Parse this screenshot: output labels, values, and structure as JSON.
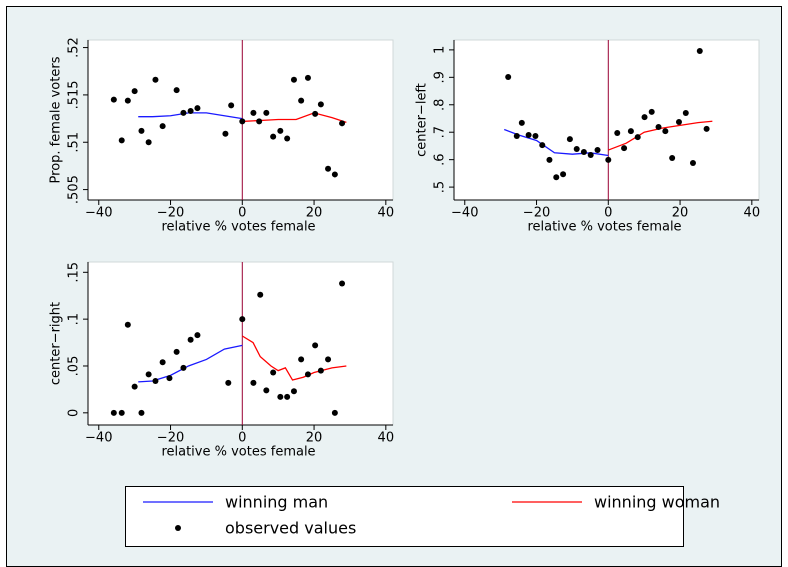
{
  "chart_data": [
    {
      "type": "line",
      "ylabel": "Prop. female voters",
      "xlabel": "relative % votes female",
      "xlim": [
        -43,
        42
      ],
      "ylim": [
        0.5039,
        0.5208
      ],
      "xticks": [
        {
          "value": -40,
          "label": "−40"
        },
        {
          "value": -20,
          "label": "−20"
        },
        0,
        20,
        40
      ],
      "yticks": [
        {
          "value": 0.505,
          "label": ".505"
        },
        {
          "value": 0.51,
          "label": ".51"
        },
        {
          "value": 0.515,
          "label": ".515"
        },
        {
          "value": 0.52,
          "label": ".52"
        }
      ],
      "xline": 0,
      "xline_color": "#990033",
      "series": [
        {
          "name": "winning man",
          "type": "line",
          "color": "#1a1aff",
          "x": [
            -29,
            -25,
            -20,
            -15,
            -10,
            -5,
            0
          ],
          "values": [
            0.5127,
            0.5127,
            0.5128,
            0.5131,
            0.5131,
            0.5128,
            0.5125
          ]
        },
        {
          "name": "winning woman",
          "type": "line",
          "color": "#ff0000",
          "x": [
            0,
            5,
            10,
            15,
            20,
            25,
            29
          ],
          "values": [
            0.5122,
            0.5123,
            0.5124,
            0.5124,
            0.5131,
            0.5126,
            0.5121
          ]
        },
        {
          "name": "observed values",
          "type": "scatter",
          "color": "#000000",
          "x": [
            -35.8,
            -33.6,
            -31.9,
            -30,
            -28.1,
            -26.1,
            -24.2,
            -22.2,
            -18.3,
            -16.4,
            -14.4,
            -12.5,
            -4.7,
            -3.1,
            0,
            3.1,
            4.7,
            6.7,
            8.6,
            10.6,
            12.5,
            14.4,
            16.4,
            18.3,
            20.3,
            21.9,
            23.9,
            25.8,
            27.8
          ],
          "values": [
            0.5145,
            0.5102,
            0.5144,
            0.5154,
            0.5112,
            0.51,
            0.5166,
            0.5117,
            0.5155,
            0.5131,
            0.5133,
            0.5136,
            0.5109,
            0.5139,
            0.5122,
            0.5131,
            0.5122,
            0.5131,
            0.5106,
            0.5112,
            0.5104,
            0.5166,
            0.5144,
            0.5168,
            0.513,
            0.514,
            0.5072,
            0.5066,
            0.512
          ]
        }
      ]
    },
    {
      "type": "line",
      "ylabel": "center−left",
      "xlabel": "relative % votes female",
      "xlim": [
        -43,
        42
      ],
      "ylim": [
        0.453,
        1.036
      ],
      "xticks": [
        {
          "value": -40,
          "label": "−40"
        },
        {
          "value": -20,
          "label": "−20"
        },
        0,
        20,
        40
      ],
      "yticks": [
        {
          "value": 0.5,
          "label": ".5"
        },
        {
          "value": 0.6,
          "label": ".6"
        },
        {
          "value": 0.7,
          "label": ".7"
        },
        {
          "value": 0.8,
          "label": ".8"
        },
        {
          "value": 0.9,
          "label": ".9"
        },
        1
      ],
      "xline": 0,
      "xline_color": "#990033",
      "series": [
        {
          "type": "line",
          "color": "#1a1aff",
          "x": [
            -29,
            -25,
            -20,
            -15,
            -10,
            -5,
            0
          ],
          "values": [
            0.71,
            0.69,
            0.67,
            0.625,
            0.62,
            0.625,
            0.615
          ]
        },
        {
          "type": "line",
          "color": "#ff0000",
          "x": [
            0,
            5,
            10,
            15,
            20,
            25,
            29
          ],
          "values": [
            0.635,
            0.66,
            0.7,
            0.715,
            0.725,
            0.735,
            0.74
          ]
        },
        {
          "type": "scatter",
          "color": "#000000",
          "x": [
            -27.9,
            -25.5,
            -24.1,
            -22.2,
            -20.3,
            -18.4,
            -16.4,
            -14.5,
            -12.6,
            -10.7,
            -8.8,
            -6.8,
            -4.9,
            -3,
            0,
            2.5,
            4.4,
            6.3,
            8.2,
            10.1,
            12.1,
            14,
            15.9,
            17.8,
            19.7,
            21.6,
            23.6,
            25.5,
            27.4
          ],
          "values": [
            0.901,
            0.686,
            0.734,
            0.69,
            0.686,
            0.653,
            0.599,
            0.536,
            0.547,
            0.675,
            0.639,
            0.628,
            0.617,
            0.635,
            0.599,
            0.697,
            0.642,
            0.704,
            0.682,
            0.755,
            0.774,
            0.719,
            0.704,
            0.606,
            0.737,
            0.77,
            0.588,
            0.996,
            0.712
          ]
        }
      ]
    },
    {
      "type": "line",
      "ylabel": "center−right",
      "xlabel": "relative % votes female",
      "xlim": [
        -43,
        42
      ],
      "ylim": [
        -0.013,
        0.161
      ],
      "xticks": [
        {
          "value": -40,
          "label": "−40"
        },
        {
          "value": -20,
          "label": "−20"
        },
        0,
        20,
        40
      ],
      "yticks": [
        0,
        {
          "value": 0.05,
          "label": ".05"
        },
        {
          "value": 0.1,
          "label": ".1"
        },
        {
          "value": 0.15,
          "label": ".15"
        }
      ],
      "xline": 0,
      "xline_color": "#990033",
      "series": [
        {
          "type": "line",
          "color": "#1a1aff",
          "x": [
            -29,
            -25,
            -20,
            -15,
            -10,
            -5,
            0
          ],
          "values": [
            0.033,
            0.034,
            0.04,
            0.05,
            0.057,
            0.068,
            0.072
          ]
        },
        {
          "type": "line",
          "color": "#ff0000",
          "x": [
            0,
            3,
            5,
            8,
            10,
            12,
            14,
            17,
            20,
            25,
            29
          ],
          "values": [
            0.082,
            0.075,
            0.06,
            0.05,
            0.045,
            0.048,
            0.035,
            0.038,
            0.043,
            0.048,
            0.05
          ]
        },
        {
          "type": "scatter",
          "color": "#000000",
          "x": [
            -35.8,
            -33.6,
            -31.9,
            -30,
            -28.1,
            -26.1,
            -24.2,
            -22.2,
            -20.3,
            -18.3,
            -16.4,
            -14.4,
            -12.5,
            -3.9,
            0,
            3.1,
            5,
            6.7,
            8.6,
            10.6,
            12.5,
            14.4,
            16.4,
            18.3,
            20.3,
            21.9,
            23.9,
            25.8,
            27.8
          ],
          "values": [
            0,
            0,
            0.094,
            0.028,
            0,
            0.041,
            0.034,
            0.054,
            0.037,
            0.065,
            0.048,
            0.078,
            0.083,
            0.032,
            0.1,
            0.032,
            0.126,
            0.024,
            0.043,
            0.017,
            0.017,
            0.023,
            0.057,
            0.041,
            0.072,
            0.045,
            0.057,
            0,
            0.138
          ]
        }
      ]
    }
  ]
}
